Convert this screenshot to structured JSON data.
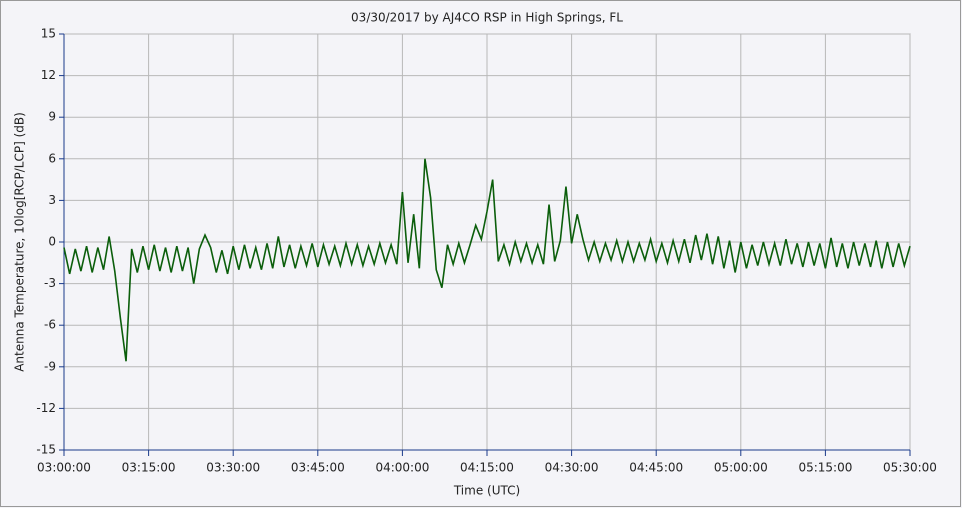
{
  "chart_data": {
    "type": "line",
    "title": "03/30/2017  by  AJ4CO RSP  in  High Springs, FL",
    "y_label": "Antenna Temperature, 10log[RCP/LCP] (dB)",
    "x_label": "Time (UTC)",
    "color": "#0b5e0b",
    "grid": true,
    "ylim": [
      -15,
      15
    ],
    "yticks": [
      -15,
      -12,
      -9,
      -6,
      -3,
      0,
      3,
      6,
      9,
      12,
      15
    ],
    "xlim": [
      "03:00:00",
      "05:30:00"
    ],
    "xticks": [
      "03:00:00",
      "03:15:00",
      "03:30:00",
      "03:45:00",
      "04:00:00",
      "04:15:00",
      "04:30:00",
      "04:45:00",
      "05:00:00",
      "05:15:00",
      "05:30:00"
    ],
    "x": [
      "03:00:00",
      "03:01:00",
      "03:02:00",
      "03:03:00",
      "03:04:00",
      "03:05:00",
      "03:06:00",
      "03:07:00",
      "03:08:00",
      "03:09:00",
      "03:10:00",
      "03:11:00",
      "03:12:00",
      "03:13:00",
      "03:14:00",
      "03:15:00",
      "03:16:00",
      "03:17:00",
      "03:18:00",
      "03:19:00",
      "03:20:00",
      "03:21:00",
      "03:22:00",
      "03:23:00",
      "03:24:00",
      "03:25:00",
      "03:26:00",
      "03:27:00",
      "03:28:00",
      "03:29:00",
      "03:30:00",
      "03:31:00",
      "03:32:00",
      "03:33:00",
      "03:34:00",
      "03:35:00",
      "03:36:00",
      "03:37:00",
      "03:38:00",
      "03:39:00",
      "03:40:00",
      "03:41:00",
      "03:42:00",
      "03:43:00",
      "03:44:00",
      "03:45:00",
      "03:46:00",
      "03:47:00",
      "03:48:00",
      "03:49:00",
      "03:50:00",
      "03:51:00",
      "03:52:00",
      "03:53:00",
      "03:54:00",
      "03:55:00",
      "03:56:00",
      "03:57:00",
      "03:58:00",
      "03:59:00",
      "04:00:00",
      "04:01:00",
      "04:02:00",
      "04:03:00",
      "04:04:00",
      "04:05:00",
      "04:06:00",
      "04:07:00",
      "04:08:00",
      "04:09:00",
      "04:10:00",
      "04:11:00",
      "04:12:00",
      "04:13:00",
      "04:14:00",
      "04:15:00",
      "04:16:00",
      "04:17:00",
      "04:18:00",
      "04:19:00",
      "04:20:00",
      "04:21:00",
      "04:22:00",
      "04:23:00",
      "04:24:00",
      "04:25:00",
      "04:26:00",
      "04:27:00",
      "04:28:00",
      "04:29:00",
      "04:30:00",
      "04:31:00",
      "04:32:00",
      "04:33:00",
      "04:34:00",
      "04:35:00",
      "04:36:00",
      "04:37:00",
      "04:38:00",
      "04:39:00",
      "04:40:00",
      "04:41:00",
      "04:42:00",
      "04:43:00",
      "04:44:00",
      "04:45:00",
      "04:46:00",
      "04:47:00",
      "04:48:00",
      "04:49:00",
      "04:50:00",
      "04:51:00",
      "04:52:00",
      "04:53:00",
      "04:54:00",
      "04:55:00",
      "04:56:00",
      "04:57:00",
      "04:58:00",
      "04:59:00",
      "05:00:00",
      "05:01:00",
      "05:02:00",
      "05:03:00",
      "05:04:00",
      "05:05:00",
      "05:06:00",
      "05:07:00",
      "05:08:00",
      "05:09:00",
      "05:10:00",
      "05:11:00",
      "05:12:00",
      "05:13:00",
      "05:14:00",
      "05:15:00",
      "05:16:00",
      "05:17:00",
      "05:18:00",
      "05:19:00",
      "05:20:00",
      "05:21:00",
      "05:22:00",
      "05:23:00",
      "05:24:00",
      "05:25:00",
      "05:26:00",
      "05:27:00",
      "05:28:00",
      "05:29:00",
      "05:30:00"
    ],
    "values": [
      -0.4,
      -2.3,
      -0.5,
      -2.1,
      -0.3,
      -2.2,
      -0.4,
      -2.0,
      0.4,
      -2.1,
      -5.5,
      -8.6,
      -0.5,
      -2.2,
      -0.3,
      -2.0,
      -0.2,
      -2.1,
      -0.4,
      -2.2,
      -0.3,
      -2.1,
      -0.4,
      -3.0,
      -0.5,
      0.5,
      -0.4,
      -2.2,
      -0.6,
      -2.3,
      -0.3,
      -2.0,
      -0.2,
      -1.9,
      -0.4,
      -2.0,
      -0.1,
      -1.9,
      0.4,
      -1.8,
      -0.2,
      -1.9,
      -0.3,
      -1.7,
      -0.1,
      -1.8,
      -0.2,
      -1.6,
      -0.3,
      -1.7,
      -0.1,
      -1.6,
      -0.2,
      -1.7,
      -0.3,
      -1.6,
      -0.1,
      -1.5,
      -0.2,
      -1.6,
      3.6,
      -1.5,
      2.0,
      -1.9,
      6.0,
      3.2,
      -2.0,
      -3.3,
      -0.2,
      -1.6,
      -0.1,
      -1.5,
      -0.2,
      1.2,
      0.2,
      2.2,
      4.5,
      -1.4,
      -0.2,
      -1.6,
      0.0,
      -1.4,
      -0.1,
      -1.5,
      -0.2,
      -1.6,
      2.7,
      -1.4,
      0.1,
      4.0,
      -0.1,
      2.0,
      0.2,
      -1.3,
      0.0,
      -1.4,
      -0.1,
      -1.3,
      0.1,
      -1.4,
      0.0,
      -1.4,
      -0.1,
      -1.3,
      0.2,
      -1.4,
      -0.1,
      -1.5,
      0.1,
      -1.4,
      0.2,
      -1.5,
      0.5,
      -1.3,
      0.6,
      -1.6,
      0.4,
      -1.9,
      0.1,
      -2.2,
      0.0,
      -1.9,
      -0.2,
      -1.7,
      0.0,
      -1.6,
      -0.1,
      -1.7,
      0.2,
      -1.6,
      -0.1,
      -1.8,
      0.0,
      -1.7,
      -0.1,
      -1.9,
      0.3,
      -1.8,
      -0.1,
      -1.9,
      0.0,
      -1.7,
      -0.1,
      -1.8,
      0.1,
      -1.9,
      0.0,
      -1.8,
      -0.1,
      -1.7,
      -0.3
    ]
  }
}
